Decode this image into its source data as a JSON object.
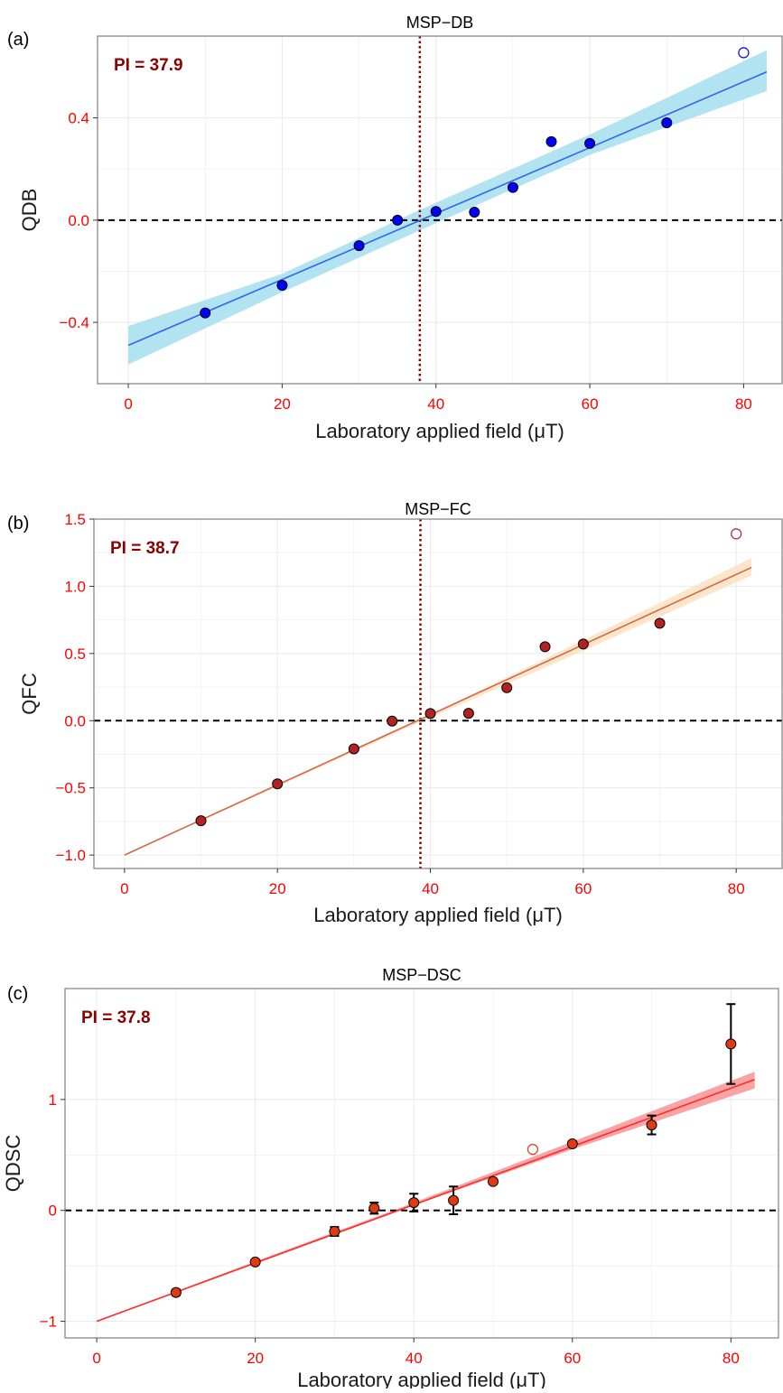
{
  "colors": {
    "grid": "#ebebeb",
    "panel_border": "#7f7f7f",
    "tick_label": "#ff0000",
    "axis_title": "#1a1a1a",
    "pi_text": "#8b0000",
    "pi_line": "#8b0000"
  },
  "chart_data": [
    {
      "type": "scatter",
      "panel_label": "(a)",
      "title": "MSP−DB",
      "xlabel": "Laboratory applied field (μT)",
      "ylabel": "QDB",
      "xlim": [
        -4,
        85
      ],
      "ylim": [
        -0.64,
        0.72
      ],
      "xticks": [
        0,
        20,
        40,
        60,
        80
      ],
      "yticks": [
        -0.4,
        0.0,
        0.4
      ],
      "ytick_labels": [
        "−0.4",
        "0.0",
        "0.4"
      ],
      "grid": true,
      "pi_label": "PI = 37.9",
      "pi_value": 37.9,
      "zero_line": true,
      "fit": {
        "x0": 0,
        "y0": -0.49,
        "x1": 83,
        "y1": 0.58
      },
      "band": [
        [
          0,
          -0.565,
          -0.415
        ],
        [
          20,
          -0.282,
          -0.21
        ],
        [
          37.9,
          -0.04,
          0.04
        ],
        [
          60,
          0.255,
          0.335
        ],
        [
          83,
          0.505,
          0.665
        ]
      ],
      "point_color": "#0000ff",
      "fit_color": "#3366ee",
      "band_color": "#a8e0f0",
      "points": [
        {
          "x": 10,
          "y": -0.363
        },
        {
          "x": 20,
          "y": -0.255
        },
        {
          "x": 30,
          "y": -0.1
        },
        {
          "x": 35,
          "y": 0.0
        },
        {
          "x": 40,
          "y": 0.034
        },
        {
          "x": 45,
          "y": 0.031
        },
        {
          "x": 50,
          "y": 0.128
        },
        {
          "x": 55,
          "y": 0.307
        },
        {
          "x": 60,
          "y": 0.3
        },
        {
          "x": 70,
          "y": 0.381
        }
      ],
      "excluded_points": [
        {
          "x": 80,
          "y": 0.655
        }
      ]
    },
    {
      "type": "scatter",
      "panel_label": "(b)",
      "title": "MSP−FC",
      "xlabel": "Laboratory applied field (μT)",
      "ylabel": "QFC",
      "xlim": [
        -4,
        86
      ],
      "ylim": [
        -1.1,
        1.5
      ],
      "xticks": [
        0,
        20,
        40,
        60,
        80
      ],
      "yticks": [
        -1.0,
        -0.5,
        0.0,
        0.5,
        1.0,
        1.5
      ],
      "ytick_labels": [
        "−1.0",
        "−0.5",
        "0.0",
        "0.5",
        "1.0",
        "1.5"
      ],
      "grid": true,
      "pi_label": "PI = 38.7",
      "pi_value": 38.7,
      "zero_line": true,
      "fit": {
        "x0": 0,
        "y0": -1.0,
        "x1": 82,
        "y1": 1.14
      },
      "band": [
        [
          0,
          -1.0,
          -1.0
        ],
        [
          20,
          -0.49,
          -0.47
        ],
        [
          38.7,
          -0.01,
          0.01
        ],
        [
          60,
          0.52,
          0.6
        ],
        [
          82,
          1.08,
          1.21
        ]
      ],
      "point_color": "#b22222",
      "fit_color": "#d2694a",
      "band_color": "#fbe3c4",
      "points": [
        {
          "x": 10,
          "y": -0.745
        },
        {
          "x": 20,
          "y": -0.47
        },
        {
          "x": 30,
          "y": -0.21
        },
        {
          "x": 35,
          "y": -0.003
        },
        {
          "x": 40,
          "y": 0.053
        },
        {
          "x": 45,
          "y": 0.055
        },
        {
          "x": 50,
          "y": 0.245
        },
        {
          "x": 55,
          "y": 0.55
        },
        {
          "x": 60,
          "y": 0.57
        },
        {
          "x": 70,
          "y": 0.725
        }
      ],
      "excluded_points": [
        {
          "x": 80,
          "y": 1.39
        }
      ]
    },
    {
      "type": "scatter",
      "panel_label": "(c)",
      "title": "MSP−DSC",
      "xlabel": "Laboratory applied field (μT)",
      "ylabel": "QDSC",
      "xlim": [
        -4,
        86
      ],
      "ylim": [
        -1.15,
        2.0
      ],
      "xticks": [
        0,
        20,
        40,
        60,
        80
      ],
      "yticks": [
        -1,
        0,
        1
      ],
      "ytick_labels": [
        "−1",
        "0",
        "1"
      ],
      "grid": true,
      "pi_label": "PI = 37.8",
      "pi_value": 37.8,
      "zero_line": true,
      "fit": {
        "x0": 0,
        "y0": -1.0,
        "x1": 83,
        "y1": 1.18
      },
      "band": [
        [
          0,
          -1.0,
          -1.0
        ],
        [
          20,
          -0.48,
          -0.46
        ],
        [
          37.8,
          -0.01,
          0.01
        ],
        [
          60,
          0.55,
          0.62
        ],
        [
          83,
          1.1,
          1.25
        ]
      ],
      "point_color": "#e03a10",
      "fit_color": "#ff2a2a",
      "band_color": "#f79a9a",
      "points": [
        {
          "x": 10,
          "y": -0.74,
          "err": 0.025
        },
        {
          "x": 20,
          "y": -0.465,
          "err": 0.015
        },
        {
          "x": 30,
          "y": -0.19,
          "err": 0.04
        },
        {
          "x": 35,
          "y": 0.02,
          "err": 0.05
        },
        {
          "x": 40,
          "y": 0.07,
          "err": 0.08
        },
        {
          "x": 45,
          "y": 0.09,
          "err": 0.125
        },
        {
          "x": 50,
          "y": 0.26,
          "err": 0.02
        },
        {
          "x": 60,
          "y": 0.6,
          "err": 0.02
        },
        {
          "x": 70,
          "y": 0.77,
          "err": 0.085
        },
        {
          "x": 80,
          "y": 1.5,
          "err": 0.36
        }
      ],
      "excluded_points": [
        {
          "x": 55,
          "y": 0.55
        }
      ]
    }
  ]
}
